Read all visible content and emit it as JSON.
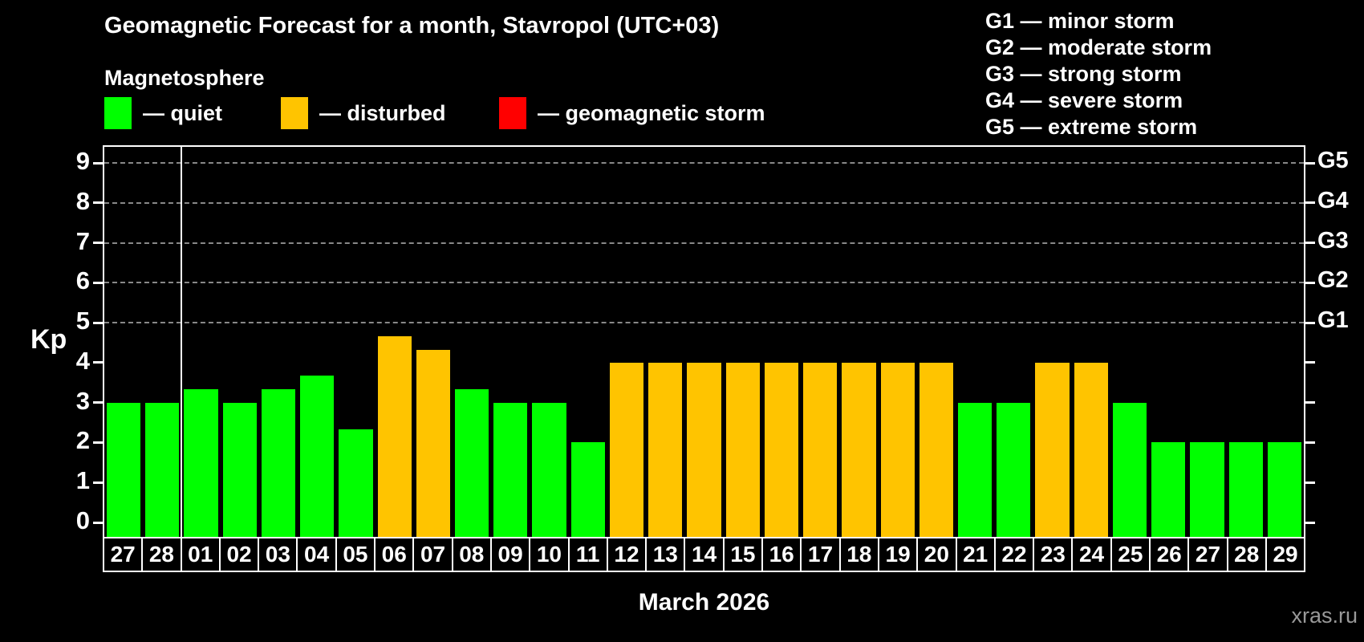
{
  "header": {
    "subtitle": "Magnetosphere"
  },
  "legend": {
    "items": [
      {
        "name": "quiet",
        "label": "— quiet",
        "color": "#00ff00"
      },
      {
        "name": "disturbed",
        "label": "— disturbed",
        "color": "#ffc400"
      },
      {
        "name": "storm",
        "label": "— geomagnetic storm",
        "color": "#ff0000"
      }
    ]
  },
  "g_legend": {
    "items": [
      {
        "label": "G1 — minor storm"
      },
      {
        "label": "G2 — moderate storm"
      },
      {
        "label": "G3 — strong storm"
      },
      {
        "label": "G4 — severe storm"
      },
      {
        "label": "G5 — extreme storm"
      }
    ]
  },
  "chart_data": {
    "type": "bar",
    "title": "Geomagnetic Forecast for a month, Stavropol (UTC+03)",
    "xlabel": "March 2026",
    "ylabel": "Kp",
    "ylim": [
      0,
      9
    ],
    "yticks": [
      0,
      1,
      2,
      3,
      4,
      5,
      6,
      7,
      8,
      9
    ],
    "gridlines_at": [
      5,
      6,
      7,
      8,
      9
    ],
    "grid": "dashed",
    "legend_position": "top",
    "right_axis_labels": [
      {
        "kp": 5,
        "label": "G1"
      },
      {
        "kp": 6,
        "label": "G2"
      },
      {
        "kp": 7,
        "label": "G3"
      },
      {
        "kp": 8,
        "label": "G4"
      },
      {
        "kp": 9,
        "label": "G5"
      }
    ],
    "month_separator_after_index": 2,
    "status_colors": {
      "quiet": "#00ff00",
      "disturbed": "#ffc400",
      "storm": "#ff0000"
    },
    "bars": [
      {
        "day": "27",
        "kp": 3.0,
        "status": "quiet"
      },
      {
        "day": "28",
        "kp": 3.0,
        "status": "quiet"
      },
      {
        "day": "01",
        "kp": 3.33,
        "status": "quiet"
      },
      {
        "day": "02",
        "kp": 3.0,
        "status": "quiet"
      },
      {
        "day": "03",
        "kp": 3.33,
        "status": "quiet"
      },
      {
        "day": "04",
        "kp": 3.67,
        "status": "quiet"
      },
      {
        "day": "05",
        "kp": 2.33,
        "status": "quiet"
      },
      {
        "day": "06",
        "kp": 4.67,
        "status": "disturbed"
      },
      {
        "day": "07",
        "kp": 4.33,
        "status": "disturbed"
      },
      {
        "day": "08",
        "kp": 3.33,
        "status": "quiet"
      },
      {
        "day": "09",
        "kp": 3.0,
        "status": "quiet"
      },
      {
        "day": "10",
        "kp": 3.0,
        "status": "quiet"
      },
      {
        "day": "11",
        "kp": 2.0,
        "status": "quiet"
      },
      {
        "day": "12",
        "kp": 4.0,
        "status": "disturbed"
      },
      {
        "day": "13",
        "kp": 4.0,
        "status": "disturbed"
      },
      {
        "day": "14",
        "kp": 4.0,
        "status": "disturbed"
      },
      {
        "day": "15",
        "kp": 4.0,
        "status": "disturbed"
      },
      {
        "day": "16",
        "kp": 4.0,
        "status": "disturbed"
      },
      {
        "day": "17",
        "kp": 4.0,
        "status": "disturbed"
      },
      {
        "day": "18",
        "kp": 4.0,
        "status": "disturbed"
      },
      {
        "day": "19",
        "kp": 4.0,
        "status": "disturbed"
      },
      {
        "day": "20",
        "kp": 4.0,
        "status": "disturbed"
      },
      {
        "day": "21",
        "kp": 3.0,
        "status": "quiet"
      },
      {
        "day": "22",
        "kp": 3.0,
        "status": "quiet"
      },
      {
        "day": "23",
        "kp": 4.0,
        "status": "disturbed"
      },
      {
        "day": "24",
        "kp": 4.0,
        "status": "disturbed"
      },
      {
        "day": "25",
        "kp": 3.0,
        "status": "quiet"
      },
      {
        "day": "26",
        "kp": 2.0,
        "status": "quiet"
      },
      {
        "day": "27",
        "kp": 2.0,
        "status": "quiet"
      },
      {
        "day": "28",
        "kp": 2.0,
        "status": "quiet"
      },
      {
        "day": "29",
        "kp": 2.0,
        "status": "quiet"
      }
    ]
  },
  "footer": {
    "watermark": "xras.ru"
  }
}
